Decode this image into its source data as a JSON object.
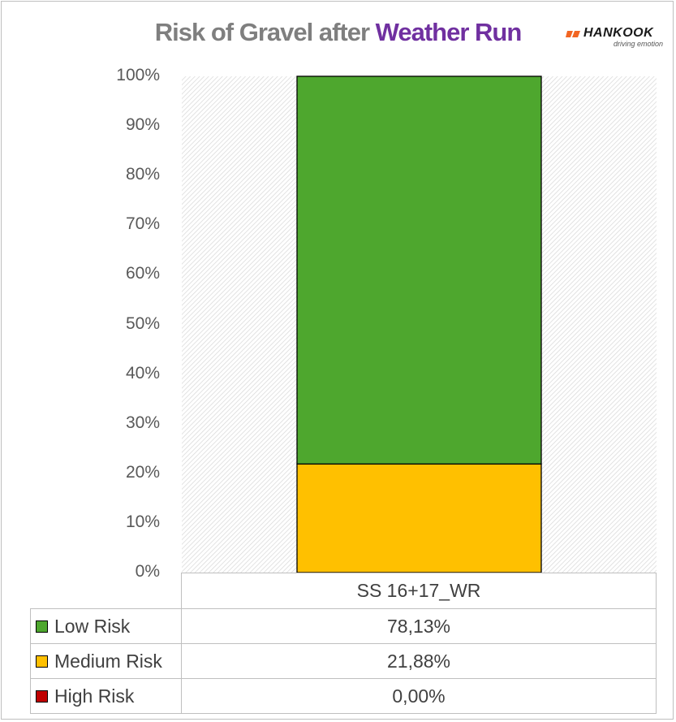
{
  "title": {
    "part1": "Risk of Gravel after ",
    "part2": "Weather Run"
  },
  "logo": {
    "word": "HANKOOK",
    "tagline": "driving emotion"
  },
  "colors": {
    "low": "#4ea72e",
    "medium": "#ffc000",
    "high": "#c00000",
    "title_accent": "#7030a0",
    "title_main": "#7f7f7f"
  },
  "chart_data": {
    "type": "bar",
    "stacked": true,
    "categories": [
      "SS 16+17_WR"
    ],
    "series": [
      {
        "name": "Low Risk",
        "values": [
          78.13
        ],
        "label": "78,13%",
        "color": "#4ea72e"
      },
      {
        "name": "Medium Risk",
        "values": [
          21.88
        ],
        "label": "21,88%",
        "color": "#ffc000"
      },
      {
        "name": "High Risk",
        "values": [
          0.0
        ],
        "label": "0,00%",
        "color": "#c00000"
      }
    ],
    "ylim": [
      0,
      100
    ],
    "yticks": [
      "0%",
      "10%",
      "20%",
      "30%",
      "40%",
      "50%",
      "60%",
      "70%",
      "80%",
      "90%",
      "100%"
    ],
    "data_table": true,
    "grid": false
  }
}
